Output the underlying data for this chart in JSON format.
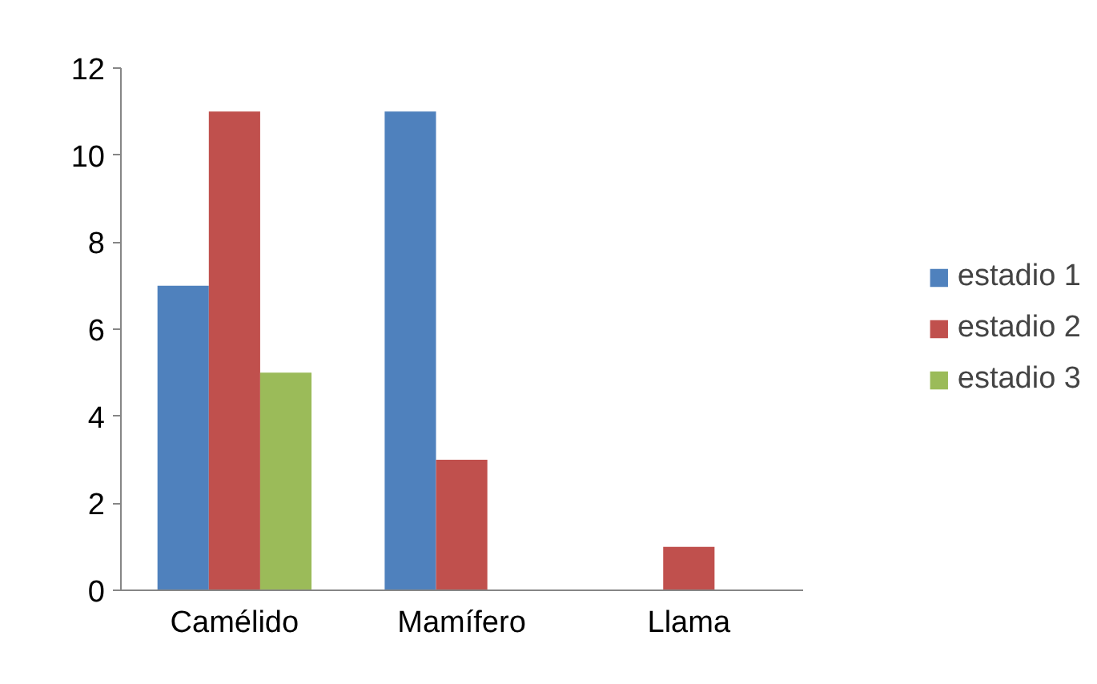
{
  "chart_data": {
    "type": "bar",
    "categories": [
      "Camélido",
      "Mamífero",
      "Llama"
    ],
    "series": [
      {
        "name": "estadio 1",
        "color": "#4f81bd",
        "values": [
          7,
          11,
          null
        ]
      },
      {
        "name": "estadio 2",
        "color": "#c0504d",
        "values": [
          11,
          3,
          1
        ]
      },
      {
        "name": "estadio 3",
        "color": "#9bbb59",
        "values": [
          5,
          null,
          null
        ]
      }
    ],
    "ylim": [
      0,
      12
    ],
    "yticks": [
      0,
      2,
      4,
      6,
      8,
      10,
      12
    ],
    "grid": false,
    "legend": "right"
  }
}
